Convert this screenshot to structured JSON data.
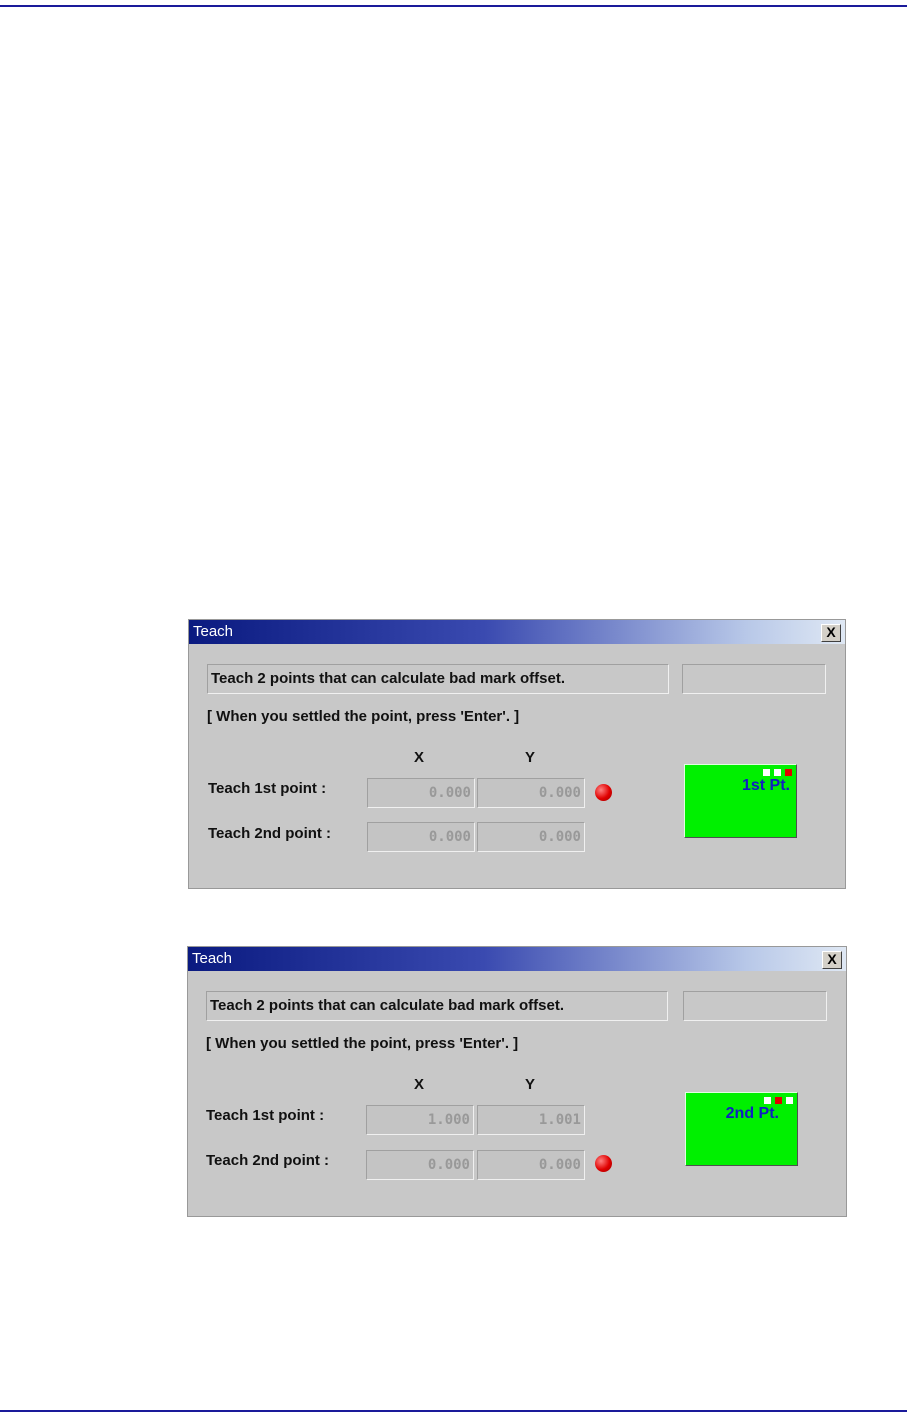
{
  "dialogs": [
    {
      "title": "Teach",
      "message": "Teach 2 points that can calculate bad mark offset.",
      "instruction": "[ When you settled the point, press 'Enter'. ]",
      "x_header": "X",
      "y_header": "Y",
      "row1_label": "Teach 1st point :",
      "row2_label": "Teach 2nd point :",
      "row1_x": "0.000",
      "row1_y": "0.000",
      "row2_x": "0.000",
      "row2_y": "0.000",
      "active_row": 1,
      "indicator_label": "1st Pt.",
      "close_label": "X"
    },
    {
      "title": "Teach",
      "message": "Teach 2 points that can calculate bad mark offset.",
      "instruction": "[ When you settled the point, press 'Enter'. ]",
      "x_header": "X",
      "y_header": "Y",
      "row1_label": "Teach 1st point :",
      "row2_label": "Teach 2nd point :",
      "row1_x": "1.000",
      "row1_y": "1.001",
      "row2_x": "0.000",
      "row2_y": "0.000",
      "active_row": 2,
      "indicator_label": "2nd Pt.",
      "close_label": "X"
    }
  ],
  "colors": {
    "rule": "#1a1a9a",
    "indicator_bg": "#00f000",
    "indicator_text": "#1020c0",
    "led": "#e00000"
  }
}
